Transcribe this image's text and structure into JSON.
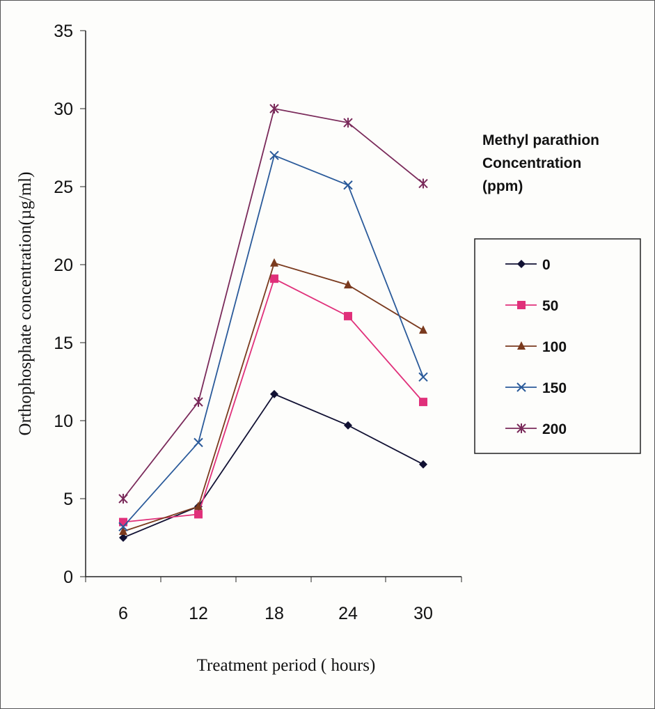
{
  "chart_data": {
    "type": "line",
    "xlabel": "Treatment period ( hours)",
    "ylabel": "Orthophosphate concentration(µg/ml)",
    "x": [
      6,
      12,
      18,
      24,
      30
    ],
    "ylim": [
      0,
      35
    ],
    "yticks": [
      0,
      5,
      10,
      15,
      20,
      25,
      30,
      35
    ],
    "grid": false,
    "legend_title": [
      "Methyl parathion",
      "Concentration",
      "(ppm)"
    ],
    "legend_placement": "right",
    "series": [
      {
        "name": "0",
        "values": [
          2.5,
          4.5,
          11.7,
          9.7,
          7.2
        ],
        "color": "#111133",
        "marker": "diamond"
      },
      {
        "name": "50",
        "values": [
          3.5,
          4.0,
          19.1,
          16.7,
          11.2
        ],
        "color": "#e0307a",
        "marker": "square"
      },
      {
        "name": "100",
        "values": [
          2.9,
          4.5,
          20.1,
          18.7,
          15.8
        ],
        "color": "#7a3a1e",
        "marker": "triangle"
      },
      {
        "name": "150",
        "values": [
          3.2,
          8.6,
          27.0,
          25.1,
          12.8
        ],
        "color": "#2a5a9a",
        "marker": "x"
      },
      {
        "name": "200",
        "values": [
          5.0,
          11.2,
          30.0,
          29.1,
          25.2
        ],
        "color": "#7a2a5a",
        "marker": "star"
      }
    ]
  }
}
